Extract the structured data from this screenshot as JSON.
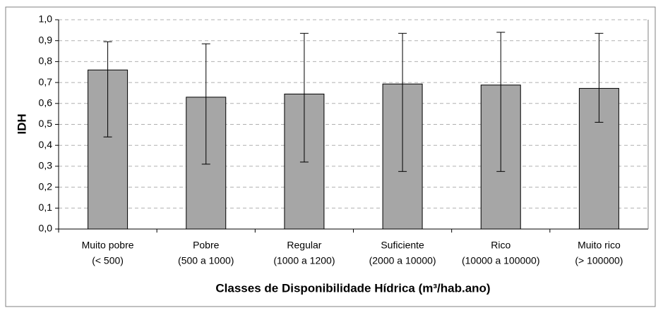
{
  "chart_data": {
    "type": "bar",
    "y_label": "IDH",
    "x_label": "Classes de Disponibilidade Hídrica (m³/hab.ano)",
    "categories": [
      [
        "Muito pobre",
        "(< 500)"
      ],
      [
        "Pobre",
        "(500 a 1000)"
      ],
      [
        "Regular",
        "(1000 a 1200)"
      ],
      [
        "Suficiente",
        "(2000 a 10000)"
      ],
      [
        "Rico",
        "(10000 a 100000)"
      ],
      [
        "Muito rico",
        "(> 100000)"
      ]
    ],
    "values": [
      0.76,
      0.63,
      0.645,
      0.693,
      0.688,
      0.672
    ],
    "upper": [
      0.895,
      0.885,
      0.935,
      0.935,
      0.94,
      0.935
    ],
    "lower": [
      0.44,
      0.31,
      0.32,
      0.275,
      0.275,
      0.51
    ],
    "color": "#a6a6a6",
    "grid": true,
    "ylim": [
      0,
      1
    ],
    "yticks": [
      {
        "value": 0,
        "label": "0,0"
      },
      {
        "value": 0.1,
        "label": "0,1"
      },
      {
        "value": 0.2,
        "label": "0,2"
      },
      {
        "value": 0.3,
        "label": "0,3"
      },
      {
        "value": 0.4,
        "label": "0,4"
      },
      {
        "value": 0.5,
        "label": "0,5"
      },
      {
        "value": 0.6,
        "label": "0,6"
      },
      {
        "value": 0.7,
        "label": "0,7"
      },
      {
        "value": 0.8,
        "label": "0,8"
      },
      {
        "value": 0.9,
        "label": "0,9"
      },
      {
        "value": 1,
        "label": "1,0"
      }
    ]
  }
}
